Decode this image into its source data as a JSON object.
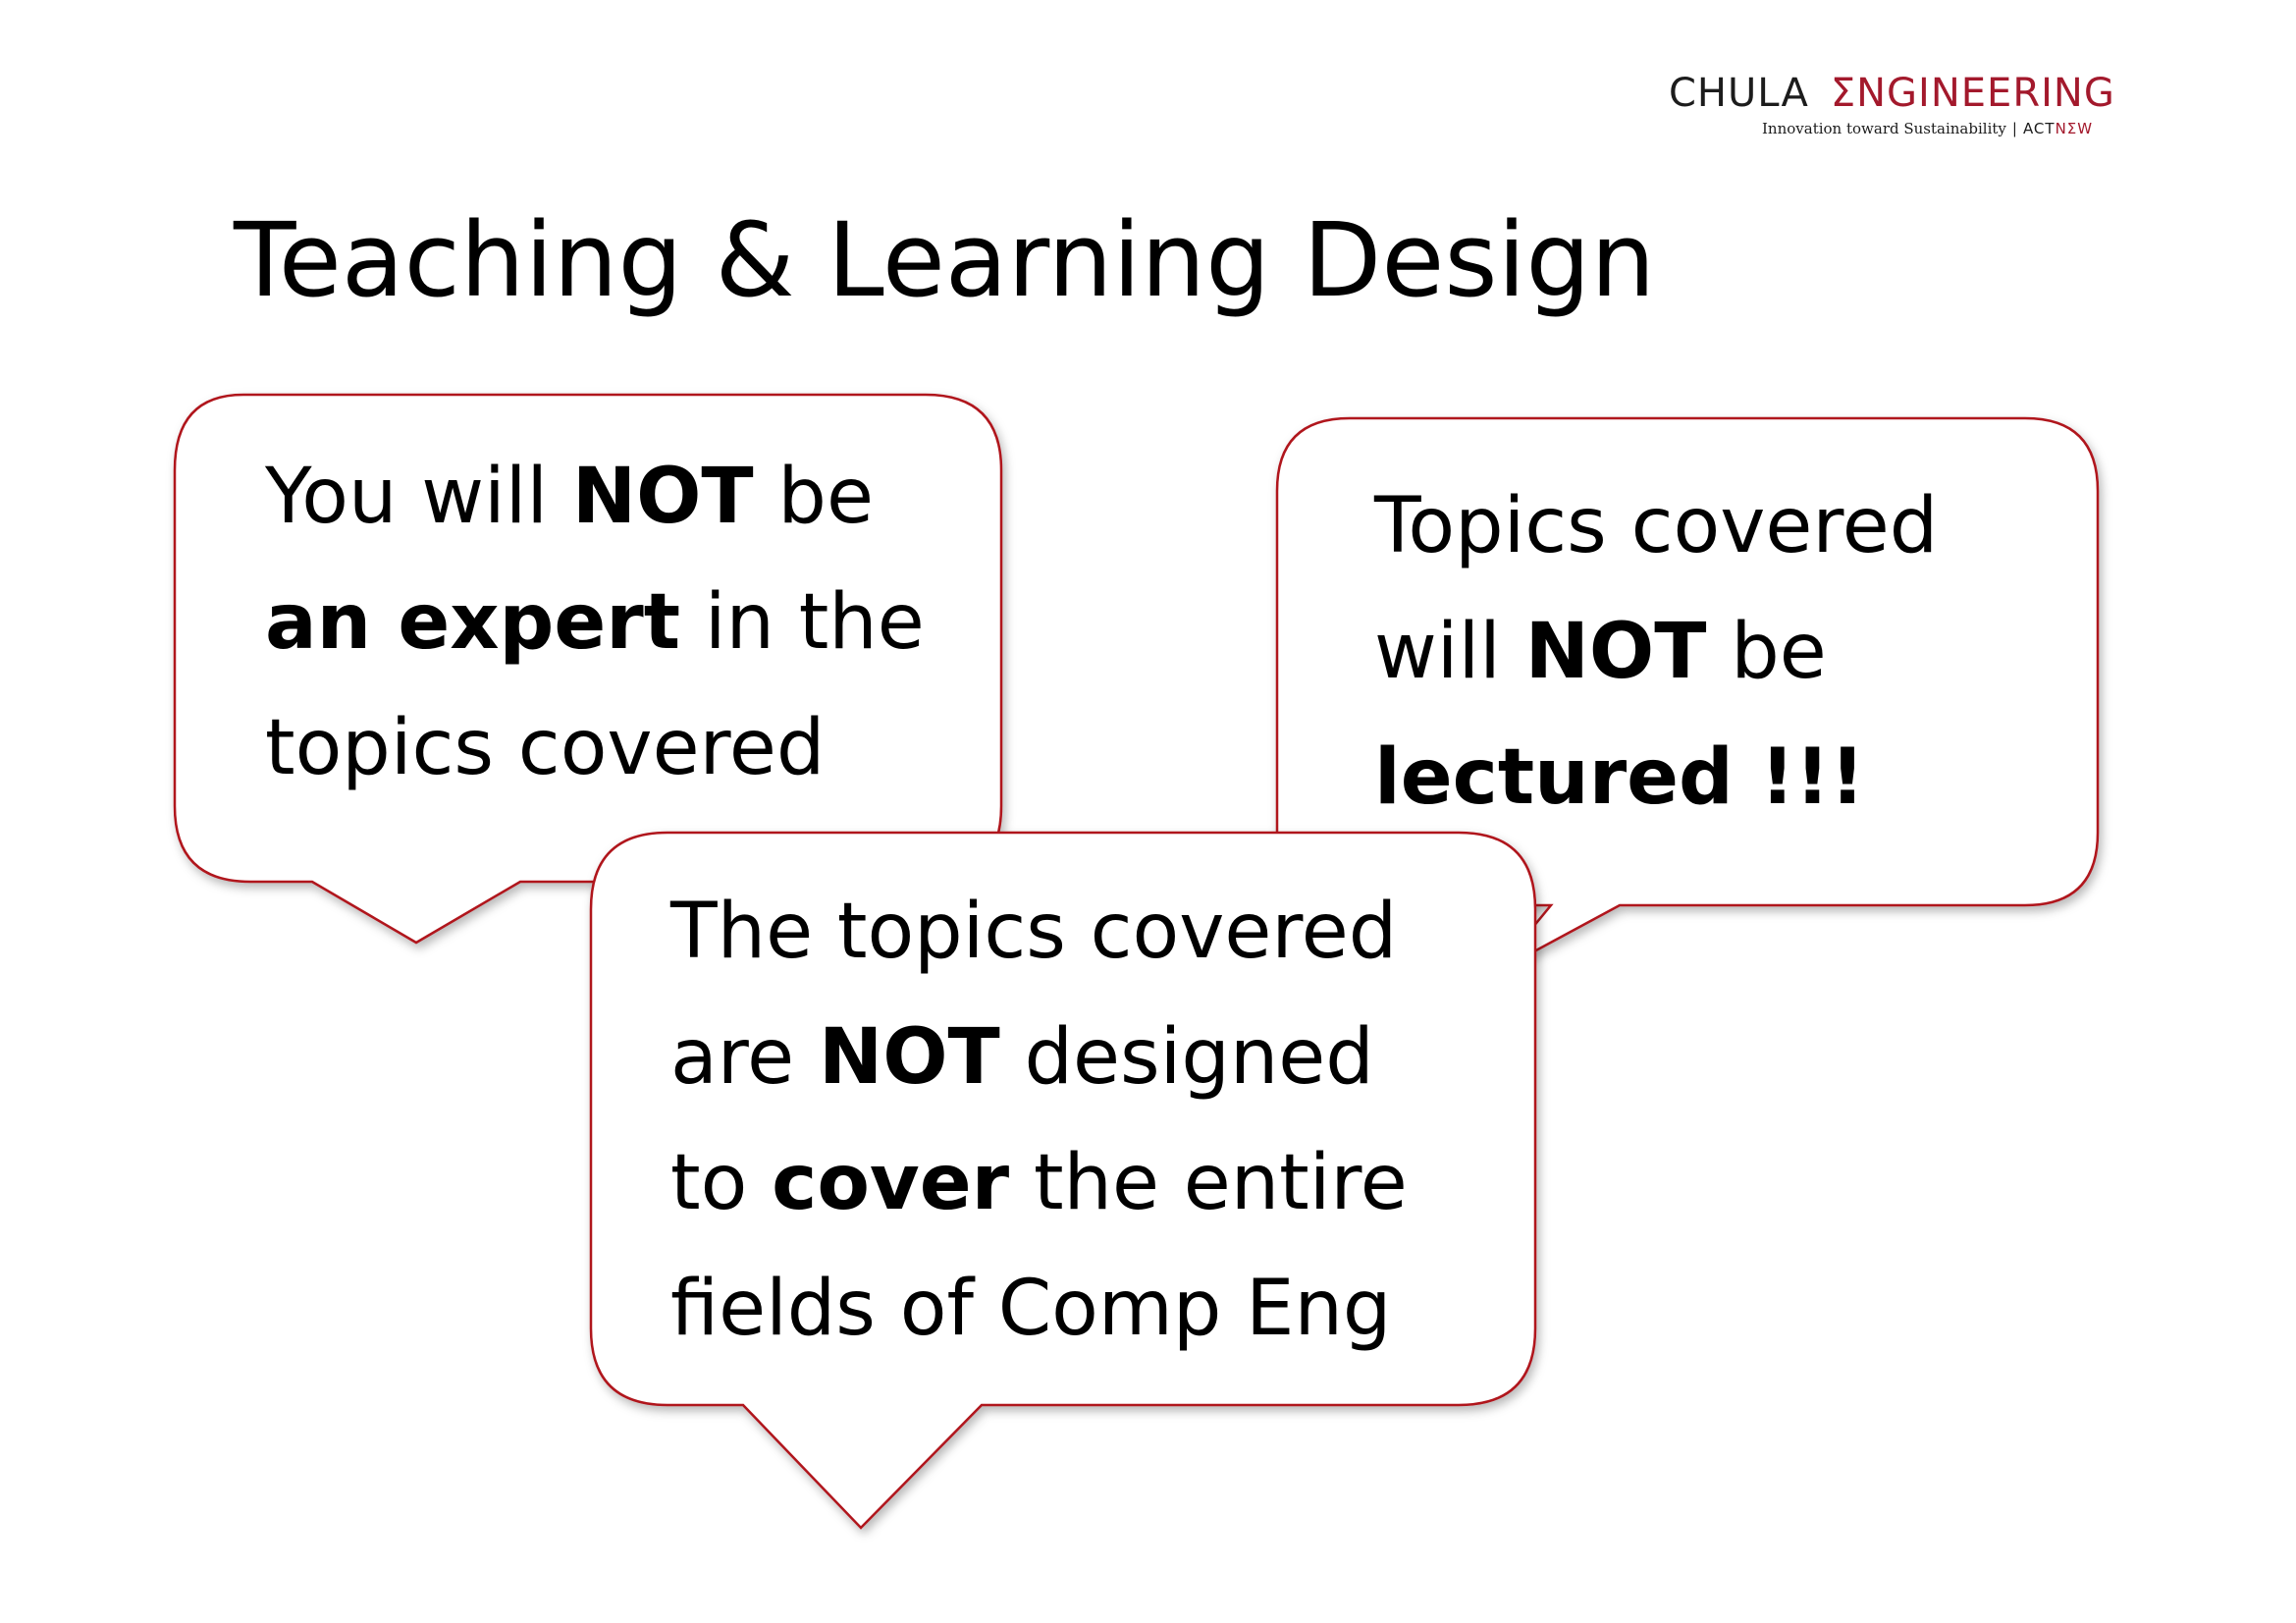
{
  "logo": {
    "chula": "CHULA",
    "engineering": "ΣNGINEERING",
    "tagline": "Innovation toward Sustainability",
    "separator": "|",
    "act": "ACT",
    "now": "NΣW"
  },
  "title": "Teaching & Learning Design",
  "bubbles": {
    "b1": {
      "l1_a": "You will ",
      "l1_b": "NOT",
      "l1_c": " be",
      "l2_a": "an expert",
      "l2_b": " in the",
      "l3": "topics covered"
    },
    "b2": {
      "l1": "Topics covered",
      "l2_a": "will ",
      "l2_b": "NOT",
      "l2_c": " be",
      "l3": "lectured !!!"
    },
    "b3": {
      "l1": "The topics covered",
      "l2_a": "are ",
      "l2_b": "NOT",
      "l2_c": " designed",
      "l3_a": "to ",
      "l3_b": "cover",
      "l3_c": " the entire",
      "l4": "fields of Comp Eng"
    }
  },
  "colors": {
    "brand_red": "#a3192c",
    "bubble_border": "#b0121b",
    "bubble_fill": "#ffffff"
  }
}
